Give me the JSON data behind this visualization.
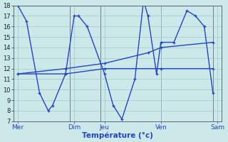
{
  "xlabel": "Température (°c)",
  "bg_color": "#cce8e8",
  "grid_color": "#99cccc",
  "line_color": "#2244cc",
  "ylim": [
    7,
    18
  ],
  "yticks": [
    7,
    8,
    9,
    10,
    11,
    12,
    13,
    14,
    15,
    16,
    17,
    18
  ],
  "xlim": [
    0,
    24
  ],
  "day_labels": [
    "Mer",
    "Dim",
    "Jeu",
    "Ven",
    "Sam"
  ],
  "day_positions": [
    0.5,
    7,
    10.5,
    17,
    23.5
  ],
  "vline_positions": [
    6.5,
    10.0,
    17.0,
    23.0
  ],
  "series1_x": [
    0.5,
    1.5,
    3.0,
    4.0,
    4.5,
    6.0,
    7.0,
    7.5,
    8.5,
    10.5,
    11.5,
    12.5,
    14.0,
    15.0,
    15.5,
    16.5,
    17.0,
    18.5,
    20.0,
    21.0,
    22.0,
    23.0
  ],
  "series1_y": [
    18.0,
    16.5,
    9.7,
    8.0,
    8.5,
    11.5,
    17.0,
    17.0,
    16.0,
    11.5,
    8.5,
    7.2,
    11.0,
    18.5,
    17.0,
    11.5,
    14.5,
    14.5,
    17.5,
    17.0,
    16.0,
    9.7
  ],
  "series2_x": [
    0.5,
    6.0,
    10.5,
    15.5,
    17.0,
    23.0
  ],
  "series2_y": [
    11.5,
    12.0,
    12.5,
    13.5,
    14.0,
    14.5
  ],
  "series3_x": [
    0.5,
    6.0,
    10.5,
    17.0,
    23.0
  ],
  "series3_y": [
    11.5,
    11.5,
    12.0,
    12.0,
    12.0
  ]
}
